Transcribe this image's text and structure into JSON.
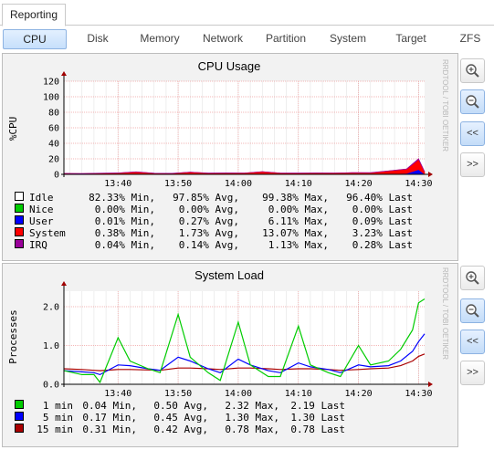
{
  "top_tab": "Reporting",
  "subtabs": [
    "CPU",
    "Disk",
    "Memory",
    "Network",
    "Partition",
    "System",
    "Target",
    "ZFS"
  ],
  "active_subtab": "CPU",
  "watermark": "RRDTOOL / TOBI OETIKER",
  "buttons": {
    "zoom_in": "zoom-in-icon",
    "zoom_out": "zoom-out-icon",
    "back": "<<",
    "forward": ">>"
  },
  "colors": {
    "green": "#00cc00",
    "blue": "#0000ff",
    "red": "#ff0000",
    "darkred": "#aa0000",
    "purple": "#990099",
    "grid_major": "#f2aaaa",
    "grid_minor": "#e6e6e6"
  },
  "cpu_chart": {
    "title": "CPU Usage",
    "ylabel": "%CPU",
    "y_ticks": [
      "120",
      "100",
      "80",
      "60",
      "40",
      "20",
      "0"
    ],
    "x_ticks": [
      "13:40",
      "13:50",
      "14:00",
      "14:10",
      "14:20",
      "14:30"
    ],
    "legend": [
      {
        "name": "Idle",
        "min": "82.33% Min,",
        "avg": "97.85% Avg,",
        "max": "99.38% Max,",
        "last": "96.40% Last",
        "color": "#ffffff"
      },
      {
        "name": "Nice",
        "min": "0.00% Min,",
        "avg": "0.00% Avg,",
        "max": "0.00% Max,",
        "last": "0.00% Last",
        "color": "#00cc00"
      },
      {
        "name": "User",
        "min": "0.01% Min,",
        "avg": "0.27% Avg,",
        "max": "6.11% Max,",
        "last": "0.09% Last",
        "color": "#0000ff"
      },
      {
        "name": "System",
        "min": "0.38% Min,",
        "avg": "1.73% Avg,",
        "max": "13.07% Max,",
        "last": "3.23% Last",
        "color": "#ff0000"
      },
      {
        "name": "IRQ",
        "min": "0.04% Min,",
        "avg": "0.14% Avg,",
        "max": "1.13% Max,",
        "last": "0.28% Last",
        "color": "#990099"
      }
    ]
  },
  "load_chart": {
    "title": "System Load",
    "ylabel": "Processes",
    "y_ticks": [
      "2.0",
      "1.0",
      "0.0"
    ],
    "x_ticks": [
      "13:40",
      "13:50",
      "14:00",
      "14:10",
      "14:20",
      "14:30"
    ],
    "legend": [
      {
        "name": "1 min",
        "min": "0.04 Min,",
        "avg": "0.50 Avg,",
        "max": "2.32 Max,",
        "last": "2.19 Last",
        "color": "#00cc00"
      },
      {
        "name": "5 min",
        "min": "0.17 Min,",
        "avg": "0.45 Avg,",
        "max": "1.30 Max,",
        "last": "1.30 Last",
        "color": "#0000ff"
      },
      {
        "name": "15 min",
        "min": "0.31 Min,",
        "avg": "0.42 Avg,",
        "max": "0.78 Max,",
        "last": "0.78 Last",
        "color": "#aa0000"
      }
    ]
  },
  "chart_data": [
    {
      "type": "area",
      "title": "CPU Usage",
      "ylabel": "%CPU",
      "ylim": [
        0,
        120
      ],
      "x": [
        "13:31",
        "13:34",
        "13:37",
        "13:40",
        "13:43",
        "13:46",
        "13:49",
        "13:52",
        "13:55",
        "13:58",
        "14:01",
        "14:04",
        "14:07",
        "14:10",
        "14:13",
        "14:16",
        "14:19",
        "14:22",
        "14:25",
        "14:28",
        "14:30",
        "14:31"
      ],
      "series": [
        {
          "name": "User",
          "values": [
            0.2,
            0.1,
            0.2,
            0.3,
            0.2,
            0.3,
            0.2,
            0.3,
            0.2,
            0.2,
            0.4,
            0.6,
            0.2,
            0.3,
            0.2,
            0.3,
            0.2,
            0.4,
            0.6,
            1.2,
            6.1,
            0.1
          ]
        },
        {
          "name": "System",
          "values": [
            1.0,
            0.9,
            1.2,
            1.4,
            3.0,
            1.1,
            1.0,
            2.5,
            1.3,
            1.5,
            1.2,
            2.8,
            1.4,
            1.2,
            1.6,
            1.3,
            1.9,
            1.6,
            3.8,
            5.5,
            13.0,
            3.2
          ]
        },
        {
          "name": "IRQ",
          "values": [
            0.1,
            0.1,
            0.1,
            0.2,
            0.1,
            0.1,
            0.2,
            0.1,
            0.1,
            0.2,
            0.1,
            0.1,
            0.2,
            0.1,
            0.1,
            0.2,
            0.1,
            0.2,
            0.1,
            0.3,
            1.1,
            0.3
          ]
        }
      ]
    },
    {
      "type": "line",
      "title": "System Load",
      "ylabel": "Processes",
      "ylim": [
        0,
        2.4
      ],
      "x": [
        "13:31",
        "13:34",
        "13:36",
        "13:37",
        "13:40",
        "13:42",
        "13:45",
        "13:47",
        "13:50",
        "13:52",
        "13:55",
        "13:57",
        "14:00",
        "14:02",
        "14:05",
        "14:07",
        "14:10",
        "14:12",
        "14:15",
        "14:17",
        "14:20",
        "14:22",
        "14:25",
        "14:27",
        "14:29",
        "14:30",
        "14:31"
      ],
      "series": [
        {
          "name": "1 min",
          "values": [
            0.35,
            0.25,
            0.25,
            0.05,
            1.2,
            0.6,
            0.4,
            0.3,
            1.8,
            0.7,
            0.3,
            0.1,
            1.6,
            0.5,
            0.2,
            0.2,
            1.5,
            0.5,
            0.3,
            0.2,
            1.0,
            0.5,
            0.6,
            0.9,
            1.4,
            2.1,
            2.2
          ]
        },
        {
          "name": "5 min",
          "values": [
            0.35,
            0.32,
            0.3,
            0.25,
            0.5,
            0.48,
            0.4,
            0.36,
            0.7,
            0.6,
            0.4,
            0.3,
            0.65,
            0.5,
            0.35,
            0.3,
            0.55,
            0.45,
            0.38,
            0.3,
            0.5,
            0.45,
            0.48,
            0.6,
            0.85,
            1.1,
            1.3
          ]
        },
        {
          "name": "15 min",
          "values": [
            0.4,
            0.38,
            0.36,
            0.35,
            0.38,
            0.38,
            0.37,
            0.36,
            0.42,
            0.42,
            0.4,
            0.38,
            0.42,
            0.42,
            0.4,
            0.38,
            0.4,
            0.4,
            0.38,
            0.36,
            0.38,
            0.4,
            0.42,
            0.48,
            0.6,
            0.72,
            0.78
          ]
        }
      ]
    }
  ]
}
